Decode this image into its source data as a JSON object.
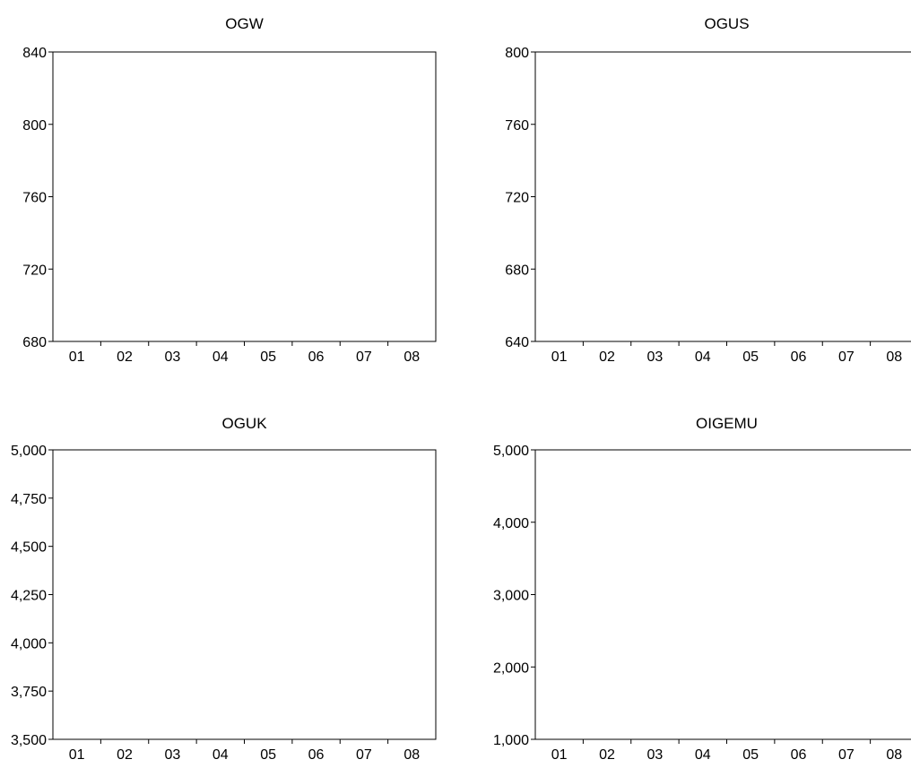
{
  "chart_data": [
    {
      "type": "line",
      "title": "OGW",
      "xlabel": "",
      "ylabel": "",
      "categories": [
        "01",
        "02",
        "03",
        "04",
        "05",
        "06",
        "07",
        "08"
      ],
      "yticks": [
        "680",
        "720",
        "760",
        "800",
        "840"
      ],
      "ylim": [
        680,
        840
      ],
      "series": []
    },
    {
      "type": "line",
      "title": "OGUS",
      "xlabel": "",
      "ylabel": "",
      "categories": [
        "01",
        "02",
        "03",
        "04",
        "05",
        "06",
        "07",
        "08"
      ],
      "yticks": [
        "640",
        "680",
        "720",
        "760",
        "800"
      ],
      "ylim": [
        640,
        800
      ],
      "series": []
    },
    {
      "type": "line",
      "title": "OGUK",
      "xlabel": "",
      "ylabel": "",
      "categories": [
        "01",
        "02",
        "03",
        "04",
        "05",
        "06",
        "07",
        "08"
      ],
      "yticks": [
        "3,500",
        "3,750",
        "4,000",
        "4,250",
        "4,500",
        "4,750",
        "5,000"
      ],
      "ylim": [
        3500,
        5000
      ],
      "series": []
    },
    {
      "type": "line",
      "title": "OIGEMU",
      "xlabel": "",
      "ylabel": "",
      "categories": [
        "01",
        "02",
        "03",
        "04",
        "05",
        "06",
        "07",
        "08"
      ],
      "yticks": [
        "1,000",
        "2,000",
        "3,000",
        "4,000",
        "5,000"
      ],
      "ylim": [
        1000,
        5000
      ],
      "series": []
    }
  ]
}
